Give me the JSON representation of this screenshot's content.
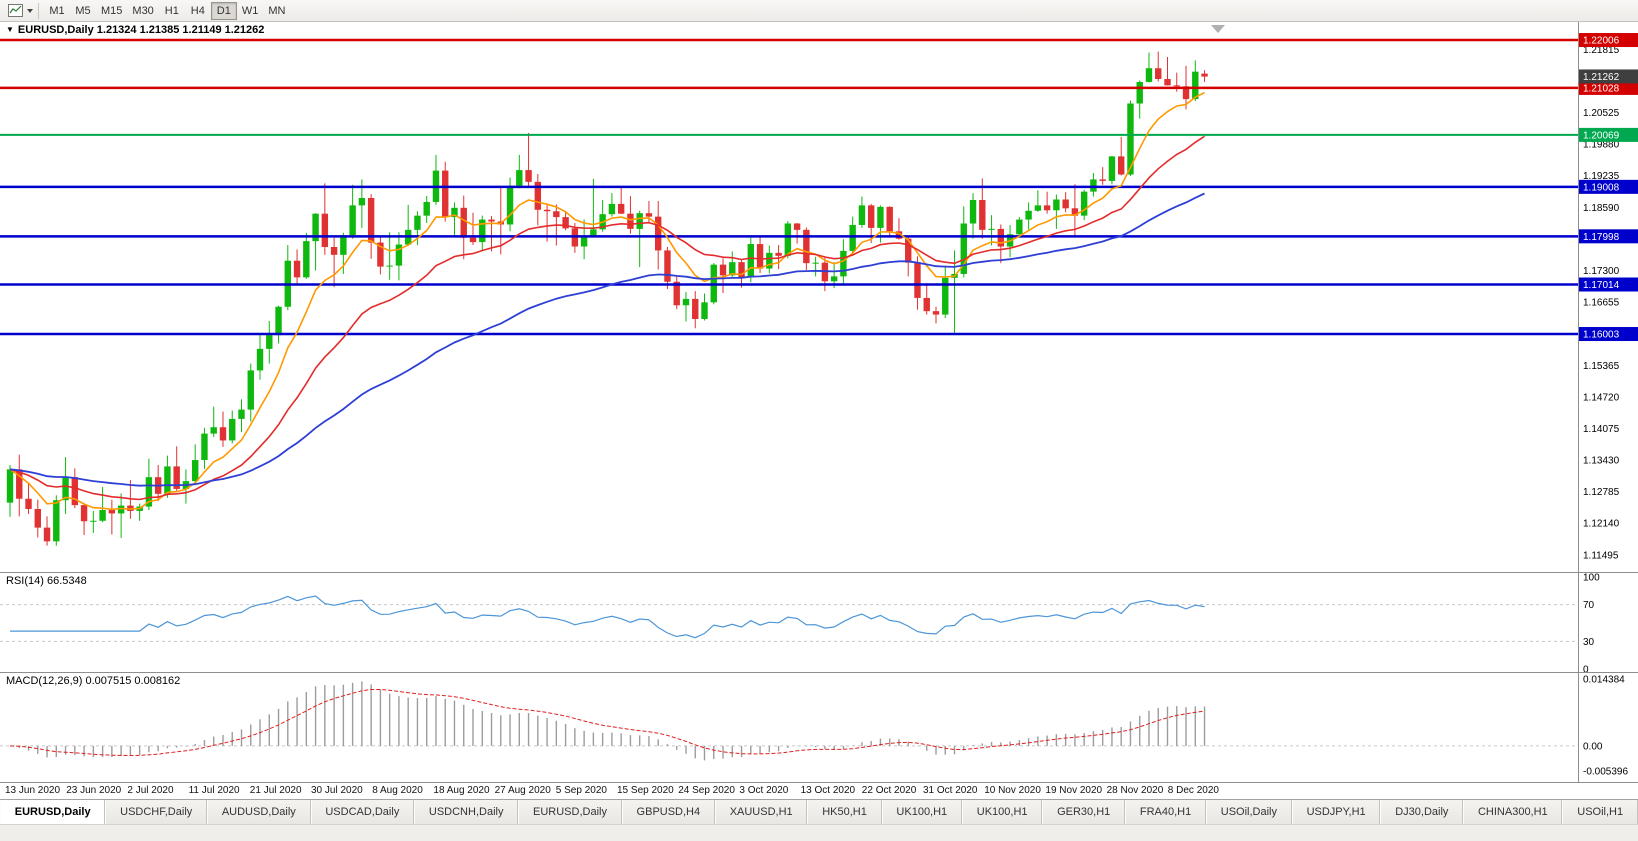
{
  "toolbar": {
    "timeframes": [
      {
        "label": "M1",
        "active": false
      },
      {
        "label": "M5",
        "active": false
      },
      {
        "label": "M15",
        "active": false
      },
      {
        "label": "M30",
        "active": false
      },
      {
        "label": "H1",
        "active": false
      },
      {
        "label": "H4",
        "active": false
      },
      {
        "label": "D1",
        "active": true
      },
      {
        "label": "W1",
        "active": false
      },
      {
        "label": "MN",
        "active": false
      }
    ]
  },
  "chart": {
    "dropdown_caret": "▼",
    "title_text": "EURUSD,Daily 1.21324 1.21385 1.21149 1.21262"
  },
  "chart_data": {
    "type": "candlestick",
    "symbol": "EURUSD",
    "period": "Daily",
    "ylim": [
      1.11144,
      1.22374
    ],
    "y_ticks": [
      "1.21815",
      "1.21170",
      "1.20525",
      "1.19880",
      "1.19235",
      "1.18590",
      "1.17945",
      "1.17300",
      "1.16655",
      "1.16010",
      "1.15365",
      "1.14720",
      "1.14075",
      "1.13430",
      "1.12785",
      "1.12140",
      "1.11495"
    ],
    "price_lines": [
      {
        "label": "1.22006",
        "value": 1.22006,
        "color": "#d40000",
        "width": 2.5
      },
      {
        "label": "1.21028",
        "value": 1.21028,
        "color": "#d40000",
        "width": 2.5
      },
      {
        "label": "1.20069",
        "value": 1.20069,
        "color": "#00a94f",
        "width": 2
      },
      {
        "label": "1.19008",
        "value": 1.19008,
        "color": "#0000cc",
        "width": 2.5
      },
      {
        "label": "1.17998",
        "value": 1.17998,
        "color": "#0000cc",
        "width": 2.5
      },
      {
        "label": "1.17014",
        "value": 1.17014,
        "color": "#0000cc",
        "width": 2.5
      },
      {
        "label": "1.16003",
        "value": 1.16003,
        "color": "#0000cc",
        "width": 2.5
      }
    ],
    "current_price": {
      "label": "1.21262",
      "value": 1.21262,
      "bg": "#3f3f3f"
    },
    "mas": [
      {
        "name": "ma-fast",
        "period": 8,
        "method": "ema",
        "color": "#ff9900",
        "width": 1.6
      },
      {
        "name": "ma-mid",
        "period": 21,
        "method": "ema",
        "color": "#e42b2b",
        "width": 1.6
      },
      {
        "name": "ma-slow",
        "period": 55,
        "method": "ema",
        "color": "#2e3fd6",
        "width": 1.8
      }
    ],
    "x_labels": [
      "13 Jun 2020",
      "23 Jun 2020",
      "2 Jul 2020",
      "11 Jul 2020",
      "21 Jul 2020",
      "30 Jul 2020",
      "8 Aug 2020",
      "18 Aug 2020",
      "27 Aug 2020",
      "5 Sep 2020",
      "15 Sep 2020",
      "24 Sep 2020",
      "3 Oct 2020",
      "13 Oct 2020",
      "22 Oct 2020",
      "31 Oct 2020",
      "10 Nov 2020",
      "19 Nov 2020",
      "28 Nov 2020",
      "8 Dec 2020"
    ],
    "rsi": {
      "label": "RSI(14) 66.5348",
      "period": 14,
      "value": 66.5348,
      "ticks": [
        "100",
        "70",
        "30",
        "0"
      ],
      "levels": [
        70,
        30
      ],
      "color": "#4d96d9",
      "range": [
        0,
        100
      ]
    },
    "macd": {
      "label": "MACD(12,26,9) 0.007515 0.008162",
      "fast": 12,
      "slow": 26,
      "signal": 9,
      "macd_value": 0.007515,
      "signal_value": 0.008162,
      "ticks": [
        {
          "label": "0.014384",
          "value": 0.014384
        },
        {
          "label": "0.00",
          "value": 0
        },
        {
          "label": "-0.005396",
          "value": -0.005396
        }
      ],
      "range": [
        -0.005396,
        0.014384
      ],
      "hist_color": "#9c9c9c",
      "signal_color": "#e02020"
    },
    "ohlc": [
      [
        "2020-06-15",
        1.1256,
        1.1333,
        1.1227,
        1.1324
      ],
      [
        "2020-06-16",
        1.1324,
        1.1354,
        1.1228,
        1.1264
      ],
      [
        "2020-06-17",
        1.1264,
        1.1296,
        1.1233,
        1.1243
      ],
      [
        "2020-06-18",
        1.1243,
        1.1262,
        1.1185,
        1.1205
      ],
      [
        "2020-06-19",
        1.1205,
        1.1228,
        1.1168,
        1.1177
      ],
      [
        "2020-06-22",
        1.1177,
        1.1271,
        1.1168,
        1.1261
      ],
      [
        "2020-06-23",
        1.1261,
        1.1349,
        1.1233,
        1.1308
      ],
      [
        "2020-06-24",
        1.1308,
        1.1326,
        1.1245,
        1.1251
      ],
      [
        "2020-06-25",
        1.1251,
        1.1255,
        1.119,
        1.1218
      ],
      [
        "2020-06-26",
        1.1218,
        1.1239,
        1.1194,
        1.1219
      ],
      [
        "2020-06-29",
        1.1219,
        1.1288,
        1.1216,
        1.1241
      ],
      [
        "2020-06-30",
        1.1241,
        1.1262,
        1.1191,
        1.1234
      ],
      [
        "2020-07-01",
        1.1234,
        1.1275,
        1.1184,
        1.125
      ],
      [
        "2020-07-02",
        1.125,
        1.1302,
        1.1223,
        1.1239
      ],
      [
        "2020-07-03",
        1.1239,
        1.1254,
        1.1219,
        1.1248
      ],
      [
        "2020-07-06",
        1.1248,
        1.1346,
        1.1241,
        1.1308
      ],
      [
        "2020-07-07",
        1.1308,
        1.1333,
        1.1259,
        1.1274
      ],
      [
        "2020-07-08",
        1.1274,
        1.1352,
        1.1266,
        1.133
      ],
      [
        "2020-07-09",
        1.133,
        1.1371,
        1.128,
        1.1284
      ],
      [
        "2020-07-10",
        1.1284,
        1.1324,
        1.1254,
        1.13
      ],
      [
        "2020-07-13",
        1.13,
        1.1375,
        1.1292,
        1.1343
      ],
      [
        "2020-07-14",
        1.1343,
        1.1409,
        1.1325,
        1.1397
      ],
      [
        "2020-07-15",
        1.1397,
        1.1452,
        1.139,
        1.141
      ],
      [
        "2020-07-16",
        1.141,
        1.1442,
        1.137,
        1.1383
      ],
      [
        "2020-07-17",
        1.1383,
        1.1444,
        1.1377,
        1.1427
      ],
      [
        "2020-07-20",
        1.1427,
        1.1467,
        1.14,
        1.1446
      ],
      [
        "2020-07-21",
        1.1446,
        1.154,
        1.1422,
        1.1526
      ],
      [
        "2020-07-22",
        1.1526,
        1.1601,
        1.1507,
        1.157
      ],
      [
        "2020-07-23",
        1.157,
        1.1627,
        1.154,
        1.1598
      ],
      [
        "2020-07-24",
        1.1598,
        1.1658,
        1.1581,
        1.1656
      ],
      [
        "2020-07-27",
        1.1656,
        1.1782,
        1.1649,
        1.175
      ],
      [
        "2020-07-28",
        1.175,
        1.1773,
        1.17,
        1.1716
      ],
      [
        "2020-07-29",
        1.1716,
        1.1807,
        1.1713,
        1.179
      ],
      [
        "2020-07-30",
        1.179,
        1.1847,
        1.173,
        1.1846
      ],
      [
        "2020-07-31",
        1.1846,
        1.1908,
        1.1762,
        1.1778
      ],
      [
        "2020-08-03",
        1.1778,
        1.1797,
        1.1696,
        1.1762
      ],
      [
        "2020-08-04",
        1.1762,
        1.1807,
        1.1723,
        1.1802
      ],
      [
        "2020-08-05",
        1.1802,
        1.1905,
        1.1795,
        1.1863
      ],
      [
        "2020-08-06",
        1.1863,
        1.1916,
        1.1817,
        1.1878
      ],
      [
        "2020-08-07",
        1.1878,
        1.1886,
        1.1754,
        1.1787
      ],
      [
        "2020-08-10",
        1.1787,
        1.1798,
        1.1722,
        1.1738
      ],
      [
        "2020-08-11",
        1.1738,
        1.1808,
        1.1711,
        1.174
      ],
      [
        "2020-08-12",
        1.174,
        1.1808,
        1.171,
        1.1783
      ],
      [
        "2020-08-13",
        1.1783,
        1.1864,
        1.178,
        1.1813
      ],
      [
        "2020-08-14",
        1.1813,
        1.1851,
        1.1782,
        1.1842
      ],
      [
        "2020-08-17",
        1.1842,
        1.1882,
        1.1827,
        1.187
      ],
      [
        "2020-08-18",
        1.187,
        1.1966,
        1.1864,
        1.1934
      ],
      [
        "2020-08-19",
        1.1934,
        1.1952,
        1.183,
        1.1839
      ],
      [
        "2020-08-20",
        1.1839,
        1.1869,
        1.18,
        1.1858
      ],
      [
        "2020-08-21",
        1.1858,
        1.1883,
        1.1753,
        1.1797
      ],
      [
        "2020-08-24",
        1.1797,
        1.1848,
        1.1782,
        1.1788
      ],
      [
        "2020-08-25",
        1.1788,
        1.1842,
        1.1772,
        1.1834
      ],
      [
        "2020-08-26",
        1.1834,
        1.1841,
        1.1769,
        1.183
      ],
      [
        "2020-08-27",
        1.183,
        1.19,
        1.1763,
        1.1824
      ],
      [
        "2020-08-28",
        1.1824,
        1.192,
        1.181,
        1.1903
      ],
      [
        "2020-08-31",
        1.1903,
        1.1966,
        1.1898,
        1.1935
      ],
      [
        "2020-09-01",
        1.1935,
        1.2011,
        1.1901,
        1.1911
      ],
      [
        "2020-09-02",
        1.1911,
        1.1927,
        1.1822,
        1.1854
      ],
      [
        "2020-09-03",
        1.1854,
        1.1865,
        1.1789,
        1.1851
      ],
      [
        "2020-09-04",
        1.1851,
        1.1865,
        1.1781,
        1.1839
      ],
      [
        "2020-09-07",
        1.1839,
        1.1849,
        1.1812,
        1.1816
      ],
      [
        "2020-09-08",
        1.1816,
        1.1827,
        1.1766,
        1.1779
      ],
      [
        "2020-09-09",
        1.1779,
        1.1834,
        1.1753,
        1.1801
      ],
      [
        "2020-09-10",
        1.1801,
        1.1917,
        1.1799,
        1.1814
      ],
      [
        "2020-09-11",
        1.1814,
        1.1874,
        1.1809,
        1.1845
      ],
      [
        "2020-09-14",
        1.1845,
        1.1888,
        1.184,
        1.1866
      ],
      [
        "2020-09-15",
        1.1866,
        1.1899,
        1.1845,
        1.1846
      ],
      [
        "2020-09-16",
        1.1846,
        1.1882,
        1.1805,
        1.1815
      ],
      [
        "2020-09-17",
        1.1815,
        1.1852,
        1.1737,
        1.1847
      ],
      [
        "2020-09-18",
        1.1847,
        1.1872,
        1.1827,
        1.184
      ],
      [
        "2020-09-21",
        1.184,
        1.1872,
        1.1732,
        1.1771
      ],
      [
        "2020-09-22",
        1.1771,
        1.1778,
        1.1692,
        1.1707
      ],
      [
        "2020-09-23",
        1.1707,
        1.172,
        1.1651,
        1.1659
      ],
      [
        "2020-09-24",
        1.1659,
        1.1686,
        1.1626,
        1.1672
      ],
      [
        "2020-09-25",
        1.1672,
        1.1688,
        1.1612,
        1.1631
      ],
      [
        "2020-09-28",
        1.1631,
        1.1683,
        1.1628,
        1.1665
      ],
      [
        "2020-09-29",
        1.1665,
        1.1745,
        1.1661,
        1.1742
      ],
      [
        "2020-09-30",
        1.1742,
        1.1755,
        1.1684,
        1.172
      ],
      [
        "2020-10-01",
        1.172,
        1.1769,
        1.1717,
        1.1747
      ],
      [
        "2020-10-02",
        1.1747,
        1.1752,
        1.1695,
        1.1716
      ],
      [
        "2020-10-05",
        1.1716,
        1.1797,
        1.1706,
        1.1784
      ],
      [
        "2020-10-06",
        1.1784,
        1.1798,
        1.1725,
        1.1734
      ],
      [
        "2020-10-07",
        1.1734,
        1.1781,
        1.1724,
        1.1766
      ],
      [
        "2020-10-08",
        1.1766,
        1.1782,
        1.1733,
        1.176
      ],
      [
        "2020-10-09",
        1.176,
        1.1831,
        1.1755,
        1.1826
      ],
      [
        "2020-10-12",
        1.1826,
        1.1827,
        1.1785,
        1.1813
      ],
      [
        "2020-10-13",
        1.1813,
        1.1818,
        1.1731,
        1.1745
      ],
      [
        "2020-10-14",
        1.1745,
        1.1758,
        1.1718,
        1.1746
      ],
      [
        "2020-10-15",
        1.1746,
        1.1758,
        1.1688,
        1.1708
      ],
      [
        "2020-10-16",
        1.1708,
        1.1747,
        1.1694,
        1.1718
      ],
      [
        "2020-10-19",
        1.1718,
        1.1794,
        1.1703,
        1.177
      ],
      [
        "2020-10-20",
        1.177,
        1.184,
        1.176,
        1.1823
      ],
      [
        "2020-10-21",
        1.1823,
        1.1881,
        1.1817,
        1.1863
      ],
      [
        "2020-10-22",
        1.1863,
        1.1866,
        1.1786,
        1.1817
      ],
      [
        "2020-10-23",
        1.1817,
        1.1863,
        1.1787,
        1.186
      ],
      [
        "2020-10-26",
        1.186,
        1.1861,
        1.18,
        1.181
      ],
      [
        "2020-10-27",
        1.181,
        1.1837,
        1.1793,
        1.1795
      ],
      [
        "2020-10-28",
        1.1795,
        1.18,
        1.1718,
        1.1746
      ],
      [
        "2020-10-29",
        1.1746,
        1.1759,
        1.165,
        1.1674
      ],
      [
        "2020-10-30",
        1.1674,
        1.1704,
        1.164,
        1.1647
      ],
      [
        "2020-11-02",
        1.1647,
        1.1656,
        1.1622,
        1.164
      ],
      [
        "2020-11-03",
        1.164,
        1.174,
        1.1633,
        1.1715
      ],
      [
        "2020-11-04",
        1.1715,
        1.1771,
        1.1603,
        1.1723
      ],
      [
        "2020-11-05",
        1.1723,
        1.1861,
        1.1716,
        1.1826
      ],
      [
        "2020-11-06",
        1.1826,
        1.1888,
        1.1795,
        1.1874
      ],
      [
        "2020-11-09",
        1.1874,
        1.1918,
        1.1795,
        1.1813
      ],
      [
        "2020-11-10",
        1.1813,
        1.1843,
        1.1781,
        1.1815
      ],
      [
        "2020-11-11",
        1.1815,
        1.1824,
        1.1745,
        1.1779
      ],
      [
        "2020-11-12",
        1.1779,
        1.1823,
        1.1757,
        1.1804
      ],
      [
        "2020-11-13",
        1.1804,
        1.1839,
        1.1799,
        1.1834
      ],
      [
        "2020-11-16",
        1.1834,
        1.1869,
        1.1814,
        1.1852
      ],
      [
        "2020-11-17",
        1.1852,
        1.1894,
        1.185,
        1.1863
      ],
      [
        "2020-11-18",
        1.1863,
        1.1891,
        1.1846,
        1.1853
      ],
      [
        "2020-11-19",
        1.1853,
        1.1885,
        1.1815,
        1.1875
      ],
      [
        "2020-11-20",
        1.1875,
        1.189,
        1.1849,
        1.1857
      ],
      [
        "2020-11-23",
        1.1857,
        1.1906,
        1.18,
        1.1842
      ],
      [
        "2020-11-24",
        1.1842,
        1.1895,
        1.1833,
        1.1891
      ],
      [
        "2020-11-25",
        1.1891,
        1.1929,
        1.1881,
        1.1916
      ],
      [
        "2020-11-26",
        1.1916,
        1.1941,
        1.1905,
        1.1913
      ],
      [
        "2020-11-27",
        1.1913,
        1.1964,
        1.1906,
        1.1963
      ],
      [
        "2020-11-30",
        1.1963,
        1.2003,
        1.1924,
        1.1926
      ],
      [
        "2020-12-01",
        1.1926,
        1.2077,
        1.1923,
        1.2071
      ],
      [
        "2020-12-02",
        1.2071,
        1.2118,
        1.204,
        1.2115
      ],
      [
        "2020-12-03",
        1.2115,
        1.2175,
        1.2114,
        1.2143
      ],
      [
        "2020-12-04",
        1.2143,
        1.2177,
        1.2116,
        1.2121
      ],
      [
        "2020-12-07",
        1.2121,
        1.2166,
        1.2108,
        1.2108
      ],
      [
        "2020-12-08",
        1.2108,
        1.2134,
        1.2095,
        1.2106
      ],
      [
        "2020-12-09",
        1.2106,
        1.2148,
        1.2059,
        1.208
      ],
      [
        "2020-12-10",
        1.208,
        1.2159,
        1.2076,
        1.2136
      ],
      [
        "2020-12-11",
        1.2132,
        1.2139,
        1.2115,
        1.2126
      ]
    ]
  },
  "tabs": [
    {
      "label": "EURUSD,Daily",
      "active": true
    },
    {
      "label": "USDCHF,Daily",
      "active": false
    },
    {
      "label": "AUDUSD,Daily",
      "active": false
    },
    {
      "label": "USDCAD,Daily",
      "active": false
    },
    {
      "label": "USDCNH,Daily",
      "active": false
    },
    {
      "label": "EURUSD,Daily",
      "active": false
    },
    {
      "label": "GBPUSD,H4",
      "active": false
    },
    {
      "label": "XAUUSD,H1",
      "active": false
    },
    {
      "label": "HK50,H1",
      "active": false
    },
    {
      "label": "UK100,H1",
      "active": false
    },
    {
      "label": "UK100,H1",
      "active": false
    },
    {
      "label": "GER30,H1",
      "active": false
    },
    {
      "label": "FRA40,H1",
      "active": false
    },
    {
      "label": "USOil,Daily",
      "active": false
    },
    {
      "label": "USDJPY,H1",
      "active": false
    },
    {
      "label": "DJ30,Daily",
      "active": false
    },
    {
      "label": "CHINA300,H1",
      "active": false
    },
    {
      "label": "USOil,H1",
      "active": false
    }
  ]
}
